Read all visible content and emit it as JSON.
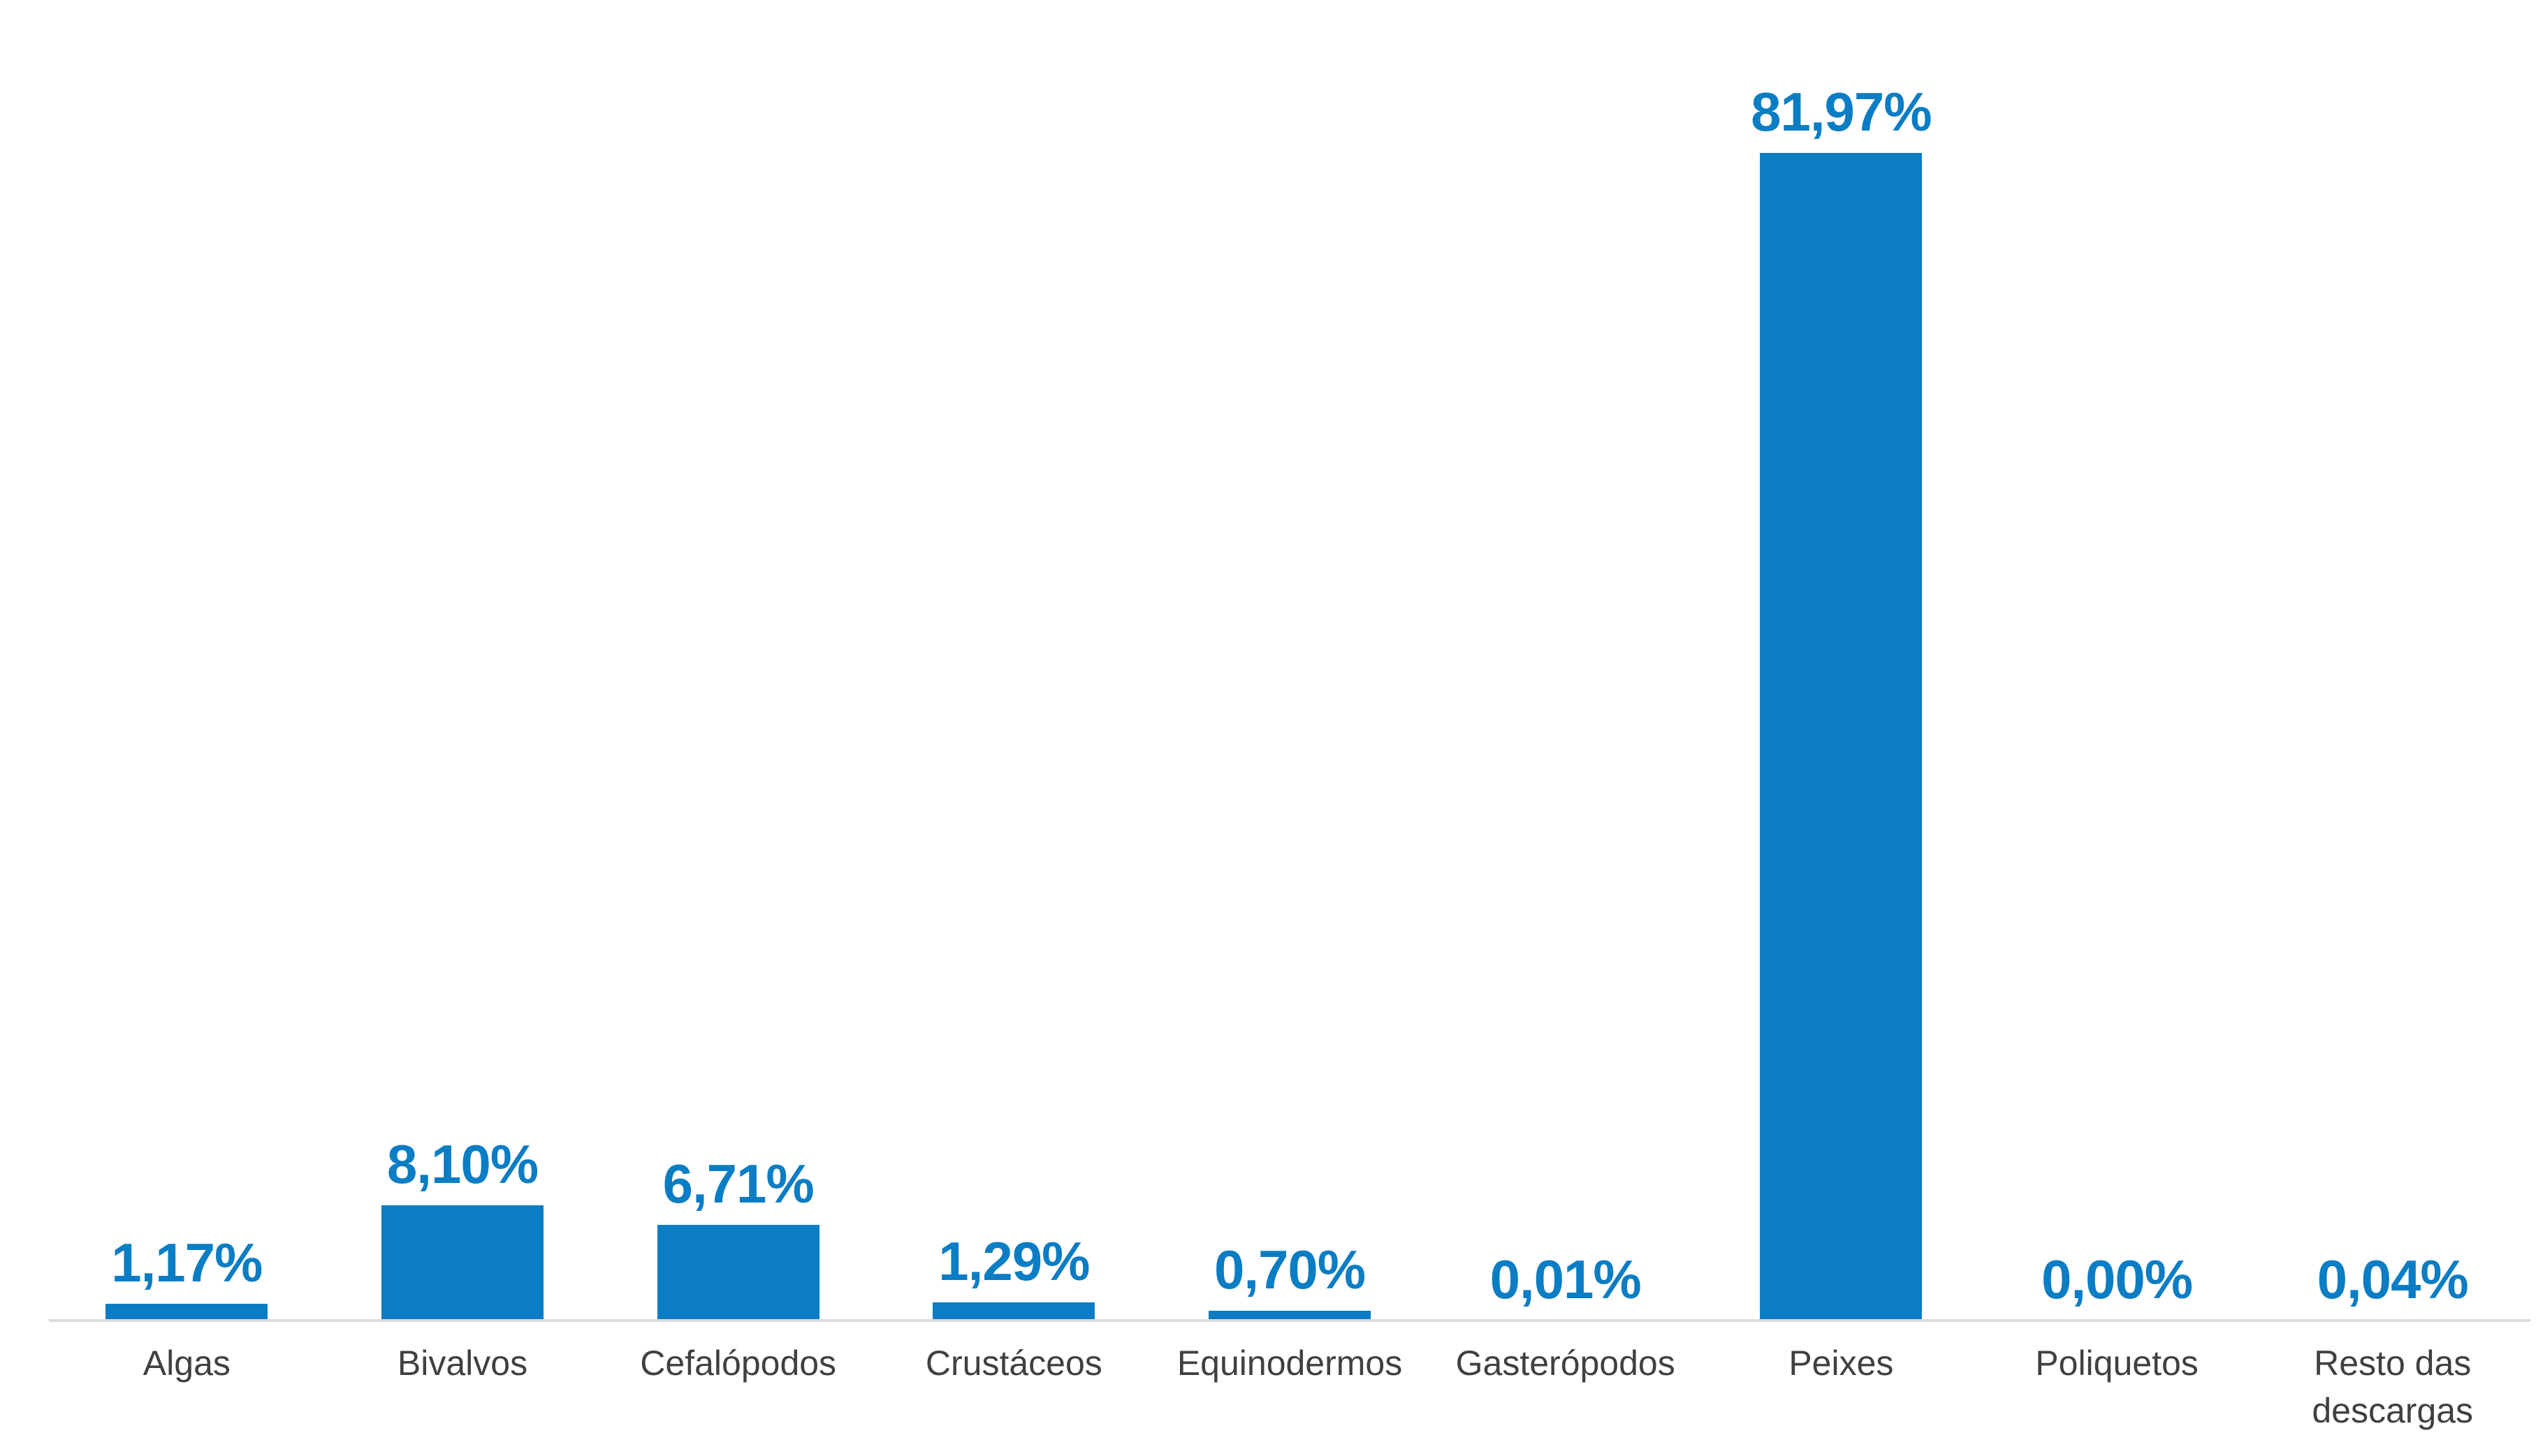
{
  "page": {
    "background": "#ffffff"
  },
  "chart_data": {
    "type": "bar",
    "title": "",
    "xlabel": "",
    "ylabel": "",
    "grid": false,
    "legend": false,
    "ylim": [
      0,
      85
    ],
    "categories": [
      "Algas",
      "Bivalvos",
      "Cefalópodos",
      "Crustáceos",
      "Equinodermos",
      "Gasterópodos",
      "Peixes",
      "Poliquetos",
      "Resto das descargas"
    ],
    "values": [
      1.17,
      8.1,
      6.71,
      1.29,
      0.7,
      0.01,
      81.97,
      0.0,
      0.04
    ],
    "value_labels": [
      "1,17%",
      "8,10%",
      "6,71%",
      "1,29%",
      "0,70%",
      "0,01%",
      "81,97%",
      "0,00%",
      "0,04%"
    ],
    "bar_color": "#0b7dc4",
    "value_label_color": "#0b7dc4",
    "category_label_color": "#404040",
    "axis_line_color": "#dcdcdc"
  }
}
